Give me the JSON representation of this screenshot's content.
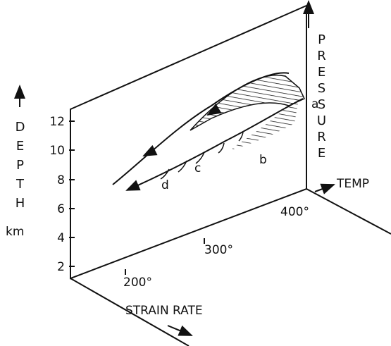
{
  "axes": {
    "depth": {
      "label": "DEPTH",
      "unit": "km",
      "ticks": [
        "2",
        "4",
        "6",
        "8",
        "10",
        "12"
      ]
    },
    "pressure": {
      "label": "PRESSURE"
    },
    "temp": {
      "label": "TEMP",
      "ticks": [
        "200°",
        "300°",
        "400°"
      ]
    },
    "strain_rate": {
      "label": "STRAIN RATE"
    }
  },
  "points": [
    "a",
    "b",
    "c",
    "d"
  ]
}
